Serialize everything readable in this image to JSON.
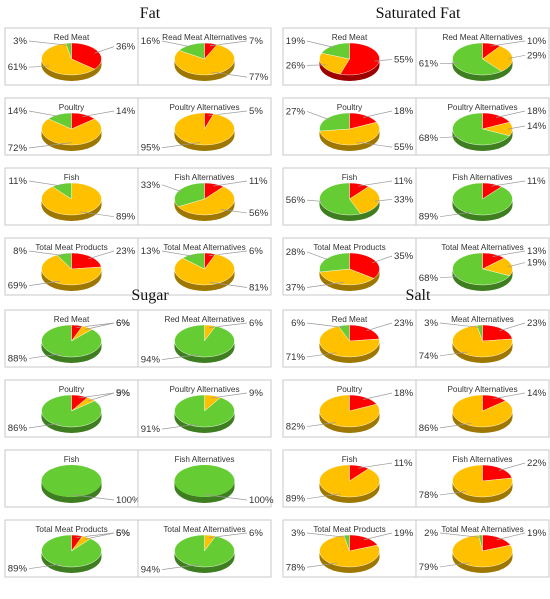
{
  "colors": {
    "red": "#ff0000",
    "green": "#66cc33",
    "orange": "#ffc000"
  },
  "chart_data": [
    {
      "type": "pie",
      "title": "Fat",
      "rows": [
        {
          "charts": [
            {
              "title": "Red Meat",
              "slices": [
                {
                  "color": "red",
                  "value": 36,
                  "label": "36%"
                },
                {
                  "color": "orange",
                  "value": 61,
                  "label": "61%"
                },
                {
                  "color": "green",
                  "value": 3,
                  "label": "3%"
                }
              ]
            },
            {
              "title": "Read Meat Alternatives",
              "slices": [
                {
                  "color": "red",
                  "value": 7,
                  "label": "7%"
                },
                {
                  "color": "orange",
                  "value": 77,
                  "label": "77%"
                },
                {
                  "color": "green",
                  "value": 16,
                  "label": "16%"
                }
              ]
            }
          ]
        },
        {
          "charts": [
            {
              "title": "Poultry",
              "slices": [
                {
                  "color": "red",
                  "value": 14,
                  "label": "14%"
                },
                {
                  "color": "orange",
                  "value": 72,
                  "label": "72%"
                },
                {
                  "color": "green",
                  "value": 14,
                  "label": "14%"
                }
              ]
            },
            {
              "title": "Poultry Alternatives",
              "slices": [
                {
                  "color": "red",
                  "value": 5,
                  "label": "5%"
                },
                {
                  "color": "orange",
                  "value": 95,
                  "label": "95%"
                },
                {
                  "color": "green",
                  "value": 0,
                  "label": ""
                }
              ]
            }
          ]
        },
        {
          "charts": [
            {
              "title": "Fish",
              "slices": [
                {
                  "color": "red",
                  "value": 0,
                  "label": ""
                },
                {
                  "color": "orange",
                  "value": 89,
                  "label": "89%"
                },
                {
                  "color": "green",
                  "value": 11,
                  "label": "11%"
                }
              ]
            },
            {
              "title": "Fish Alternatives",
              "slices": [
                {
                  "color": "red",
                  "value": 11,
                  "label": "11%"
                },
                {
                  "color": "orange",
                  "value": 56,
                  "label": "56%"
                },
                {
                  "color": "green",
                  "value": 33,
                  "label": "33%"
                }
              ]
            }
          ]
        },
        {
          "charts": [
            {
              "title": "Total Meat Products",
              "slices": [
                {
                  "color": "red",
                  "value": 23,
                  "label": "23%"
                },
                {
                  "color": "orange",
                  "value": 69,
                  "label": "69%"
                },
                {
                  "color": "green",
                  "value": 8,
                  "label": "8%"
                }
              ]
            },
            {
              "title": "Total Meat Alternatives",
              "slices": [
                {
                  "color": "red",
                  "value": 6,
                  "label": "6%"
                },
                {
                  "color": "orange",
                  "value": 81,
                  "label": "81%"
                },
                {
                  "color": "green",
                  "value": 13,
                  "label": "13%"
                }
              ]
            }
          ]
        }
      ]
    },
    {
      "type": "pie",
      "title": "Saturated Fat",
      "rows": [
        {
          "charts": [
            {
              "title": "Red Meat",
              "slices": [
                {
                  "color": "red",
                  "value": 55,
                  "label": "55%"
                },
                {
                  "color": "orange",
                  "value": 26,
                  "label": "26%"
                },
                {
                  "color": "green",
                  "value": 19,
                  "label": "19%"
                }
              ]
            },
            {
              "title": "Red Meat Alternatives",
              "slices": [
                {
                  "color": "red",
                  "value": 10,
                  "label": "10%"
                },
                {
                  "color": "orange",
                  "value": 29,
                  "label": "29%"
                },
                {
                  "color": "green",
                  "value": 61,
                  "label": "61%"
                }
              ]
            }
          ]
        },
        {
          "charts": [
            {
              "title": "Poultry",
              "slices": [
                {
                  "color": "red",
                  "value": 18,
                  "label": "18%"
                },
                {
                  "color": "orange",
                  "value": 55,
                  "label": "55%"
                },
                {
                  "color": "green",
                  "value": 27,
                  "label": "27%"
                }
              ]
            },
            {
              "title": "Poultry Alternatives",
              "slices": [
                {
                  "color": "red",
                  "value": 18,
                  "label": "18%"
                },
                {
                  "color": "orange",
                  "value": 14,
                  "label": "14%"
                },
                {
                  "color": "green",
                  "value": 68,
                  "label": "68%"
                }
              ]
            }
          ]
        },
        {
          "charts": [
            {
              "title": "Fish",
              "slices": [
                {
                  "color": "red",
                  "value": 11,
                  "label": "11%"
                },
                {
                  "color": "orange",
                  "value": 33,
                  "label": "33%"
                },
                {
                  "color": "green",
                  "value": 56,
                  "label": "56%"
                }
              ]
            },
            {
              "title": "Fish Alternatives",
              "slices": [
                {
                  "color": "red",
                  "value": 11,
                  "label": "11%"
                },
                {
                  "color": "orange",
                  "value": 0,
                  "label": ""
                },
                {
                  "color": "green",
                  "value": 89,
                  "label": "89%"
                }
              ]
            }
          ]
        },
        {
          "charts": [
            {
              "title": "Total Meat Products",
              "slices": [
                {
                  "color": "red",
                  "value": 35,
                  "label": "35%"
                },
                {
                  "color": "orange",
                  "value": 37,
                  "label": "37%"
                },
                {
                  "color": "green",
                  "value": 28,
                  "label": "28%"
                }
              ]
            },
            {
              "title": "Total Meat Alternatives",
              "slices": [
                {
                  "color": "red",
                  "value": 13,
                  "label": "13%"
                },
                {
                  "color": "orange",
                  "value": 19,
                  "label": "19%"
                },
                {
                  "color": "green",
                  "value": 68,
                  "label": "68%"
                }
              ]
            }
          ]
        }
      ]
    },
    {
      "type": "pie",
      "title": "Sugar",
      "rows": [
        {
          "charts": [
            {
              "title": "Red Meat",
              "slices": [
                {
                  "color": "red",
                  "value": 6,
                  "label": "6%"
                },
                {
                  "color": "orange",
                  "value": 6,
                  "label": "6%"
                },
                {
                  "color": "green",
                  "value": 88,
                  "label": "88%"
                }
              ]
            },
            {
              "title": "Red Meat Alternatives",
              "slices": [
                {
                  "color": "red",
                  "value": 0,
                  "label": ""
                },
                {
                  "color": "orange",
                  "value": 6,
                  "label": "6%"
                },
                {
                  "color": "green",
                  "value": 94,
                  "label": "94%"
                }
              ]
            }
          ]
        },
        {
          "charts": [
            {
              "title": "Poultry",
              "slices": [
                {
                  "color": "red",
                  "value": 9,
                  "label": "9%"
                },
                {
                  "color": "orange",
                  "value": 5,
                  "label": "5%"
                },
                {
                  "color": "green",
                  "value": 86,
                  "label": "86%"
                }
              ]
            },
            {
              "title": "Poultry Alternatives",
              "slices": [
                {
                  "color": "red",
                  "value": 0,
                  "label": ""
                },
                {
                  "color": "orange",
                  "value": 9,
                  "label": "9%"
                },
                {
                  "color": "green",
                  "value": 91,
                  "label": "91%"
                }
              ]
            }
          ]
        },
        {
          "charts": [
            {
              "title": "Fish",
              "slices": [
                {
                  "color": "red",
                  "value": 0,
                  "label": ""
                },
                {
                  "color": "orange",
                  "value": 0,
                  "label": ""
                },
                {
                  "color": "green",
                  "value": 100,
                  "label": "100%"
                }
              ]
            },
            {
              "title": "Fish Alternatives",
              "slices": [
                {
                  "color": "red",
                  "value": 0,
                  "label": ""
                },
                {
                  "color": "orange",
                  "value": 0,
                  "label": ""
                },
                {
                  "color": "green",
                  "value": 100,
                  "label": "100%"
                }
              ]
            }
          ]
        },
        {
          "charts": [
            {
              "title": "Total Meat Products",
              "slices": [
                {
                  "color": "red",
                  "value": 6,
                  "label": "6%"
                },
                {
                  "color": "orange",
                  "value": 5,
                  "label": "5%"
                },
                {
                  "color": "green",
                  "value": 89,
                  "label": "89%"
                }
              ]
            },
            {
              "title": "Total Meat Alternatives",
              "slices": [
                {
                  "color": "red",
                  "value": 0,
                  "label": ""
                },
                {
                  "color": "orange",
                  "value": 6,
                  "label": "6%"
                },
                {
                  "color": "green",
                  "value": 94,
                  "label": "94%"
                }
              ]
            }
          ]
        }
      ]
    },
    {
      "type": "pie",
      "title": "Salt",
      "rows": [
        {
          "charts": [
            {
              "title": "Red Meat",
              "slices": [
                {
                  "color": "red",
                  "value": 23,
                  "label": "23%"
                },
                {
                  "color": "orange",
                  "value": 71,
                  "label": "71%"
                },
                {
                  "color": "green",
                  "value": 6,
                  "label": "6%"
                }
              ]
            },
            {
              "title": "Meat Alternatives",
              "slices": [
                {
                  "color": "red",
                  "value": 23,
                  "label": "23%"
                },
                {
                  "color": "orange",
                  "value": 74,
                  "label": "74%"
                },
                {
                  "color": "green",
                  "value": 3,
                  "label": "3%"
                }
              ]
            }
          ]
        },
        {
          "charts": [
            {
              "title": "Poultry",
              "slices": [
                {
                  "color": "red",
                  "value": 18,
                  "label": "18%"
                },
                {
                  "color": "orange",
                  "value": 82,
                  "label": "82%"
                },
                {
                  "color": "green",
                  "value": 0,
                  "label": ""
                }
              ]
            },
            {
              "title": "Poultry Alternatives",
              "slices": [
                {
                  "color": "red",
                  "value": 14,
                  "label": "14%"
                },
                {
                  "color": "orange",
                  "value": 86,
                  "label": "86%"
                },
                {
                  "color": "green",
                  "value": 0,
                  "label": ""
                }
              ]
            }
          ]
        },
        {
          "charts": [
            {
              "title": "Fish",
              "slices": [
                {
                  "color": "red",
                  "value": 11,
                  "label": "11%"
                },
                {
                  "color": "orange",
                  "value": 89,
                  "label": "89%"
                },
                {
                  "color": "green",
                  "value": 0,
                  "label": ""
                }
              ]
            },
            {
              "title": "Fish Alternatives",
              "slices": [
                {
                  "color": "red",
                  "value": 22,
                  "label": "22%"
                },
                {
                  "color": "orange",
                  "value": 78,
                  "label": "78%"
                },
                {
                  "color": "green",
                  "value": 0,
                  "label": ""
                }
              ]
            }
          ]
        },
        {
          "charts": [
            {
              "title": "Total Meat Products",
              "slices": [
                {
                  "color": "red",
                  "value": 19,
                  "label": "19%"
                },
                {
                  "color": "orange",
                  "value": 78,
                  "label": "78%"
                },
                {
                  "color": "green",
                  "value": 3,
                  "label": "3%"
                }
              ]
            },
            {
              "title": "Total Meat Alternatives",
              "slices": [
                {
                  "color": "red",
                  "value": 19,
                  "label": "19%"
                },
                {
                  "color": "orange",
                  "value": 79,
                  "label": "79%"
                },
                {
                  "color": "green",
                  "value": 2,
                  "label": "2%"
                }
              ]
            }
          ]
        }
      ]
    }
  ]
}
